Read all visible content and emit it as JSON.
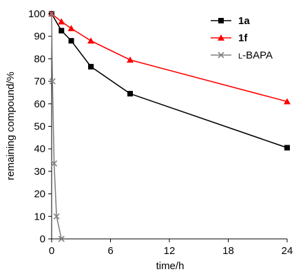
{
  "chart_data": {
    "type": "line",
    "xlabel": "time/h",
    "ylabel": "remaining compound/%",
    "xlim": [
      0,
      24
    ],
    "ylim": [
      0,
      100
    ],
    "xticks": [
      0,
      6,
      12,
      18,
      24
    ],
    "yticks": [
      0,
      10,
      20,
      30,
      40,
      50,
      60,
      70,
      80,
      90,
      100
    ],
    "grid": false,
    "legend_position": "top-right",
    "series": [
      {
        "name": "1a",
        "color": "#000000",
        "marker": "square",
        "legend_bold": true,
        "points": [
          {
            "x": 0,
            "y": 100
          },
          {
            "x": 1,
            "y": 92.5
          },
          {
            "x": 2,
            "y": 88
          },
          {
            "x": 4,
            "y": 76.5
          },
          {
            "x": 8,
            "y": 64.5
          },
          {
            "x": 24,
            "y": 40.5
          }
        ]
      },
      {
        "name": "1f",
        "color": "#ff0000",
        "marker": "triangle",
        "legend_bold": true,
        "points": [
          {
            "x": 0,
            "y": 100
          },
          {
            "x": 1,
            "y": 96.5
          },
          {
            "x": 2,
            "y": 93.5
          },
          {
            "x": 4,
            "y": 88
          },
          {
            "x": 8,
            "y": 79.5
          },
          {
            "x": 24,
            "y": 61
          }
        ]
      },
      {
        "name": "L-BAPA",
        "color": "#808080",
        "marker": "x",
        "legend_bold": false,
        "legend_parts": [
          {
            "text": "L",
            "small": true
          },
          {
            "text": "-BAPA",
            "small": false
          }
        ],
        "points": [
          {
            "x": 0,
            "y": 100
          },
          {
            "x": 0.083,
            "y": 70
          },
          {
            "x": 0.25,
            "y": 33.5
          },
          {
            "x": 0.5,
            "y": 10
          },
          {
            "x": 1,
            "y": 0
          }
        ]
      }
    ]
  }
}
